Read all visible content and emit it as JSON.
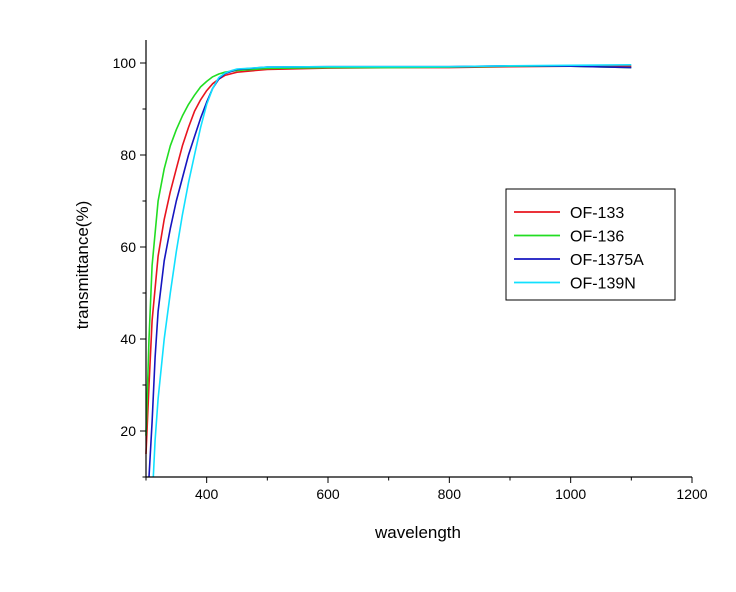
{
  "chart_data": {
    "type": "line",
    "xlabel": "wavelength",
    "ylabel": "transmittance(%)",
    "xlim": [
      300,
      1200
    ],
    "ylim": [
      10,
      105
    ],
    "x_ticks": [
      400,
      600,
      800,
      1000,
      1200
    ],
    "y_ticks": [
      20,
      40,
      60,
      80,
      100
    ],
    "x_tick_labels": [
      "400",
      "600",
      "800",
      "1000",
      "1200"
    ],
    "y_tick_labels": [
      "20",
      "40",
      "60",
      "80",
      "100"
    ],
    "grid": false,
    "legend_position": "right",
    "series": [
      {
        "name": "OF-133",
        "color": "#e8141e",
        "x": [
          300,
          305,
          310,
          320,
          330,
          340,
          350,
          360,
          370,
          380,
          390,
          400,
          410,
          420,
          430,
          450,
          500,
          600,
          700,
          800,
          900,
          1000,
          1100
        ],
        "y": [
          15,
          30,
          44,
          58,
          66,
          72,
          77,
          82,
          86,
          89.5,
          92,
          94,
          95.5,
          96.5,
          97.3,
          98,
          98.6,
          98.9,
          99,
          99,
          99.2,
          99.3,
          99.3
        ]
      },
      {
        "name": "OF-136",
        "color": "#22dd22",
        "x": [
          300,
          305,
          310,
          320,
          330,
          340,
          350,
          360,
          370,
          380,
          390,
          400,
          410,
          420,
          430,
          450,
          500,
          600,
          700,
          800,
          900,
          1000,
          1100
        ],
        "y": [
          19,
          40,
          56,
          70,
          77,
          82,
          85.5,
          88.5,
          91,
          93,
          94.8,
          96,
          97,
          97.6,
          98,
          98.4,
          98.8,
          99,
          99,
          99.1,
          99.3,
          99.3,
          99
        ]
      },
      {
        "name": "OF-1375A",
        "color": "#1515c0",
        "x": [
          305,
          310,
          315,
          320,
          330,
          340,
          350,
          360,
          370,
          380,
          390,
          400,
          410,
          420,
          430,
          450,
          500,
          600,
          700,
          800,
          900,
          1000,
          1100
        ],
        "y": [
          10,
          22,
          36,
          46,
          57,
          64,
          70,
          75,
          80,
          84,
          88,
          91.5,
          94.5,
          96.5,
          97.7,
          98.6,
          99.1,
          99.2,
          99.2,
          99.2,
          99.4,
          99.3,
          99
        ]
      },
      {
        "name": "OF-139N",
        "color": "#11e0ff",
        "x": [
          312,
          315,
          320,
          330,
          340,
          350,
          360,
          370,
          380,
          390,
          400,
          410,
          420,
          430,
          440,
          450,
          500,
          600,
          700,
          800,
          900,
          1000,
          1100
        ],
        "y": [
          10,
          18,
          27,
          40,
          50,
          59,
          67,
          74,
          80,
          86,
          91,
          94.5,
          96.8,
          97.8,
          98.3,
          98.7,
          99.1,
          99.2,
          99.2,
          99.2,
          99.4,
          99.5,
          99.6
        ]
      }
    ]
  }
}
